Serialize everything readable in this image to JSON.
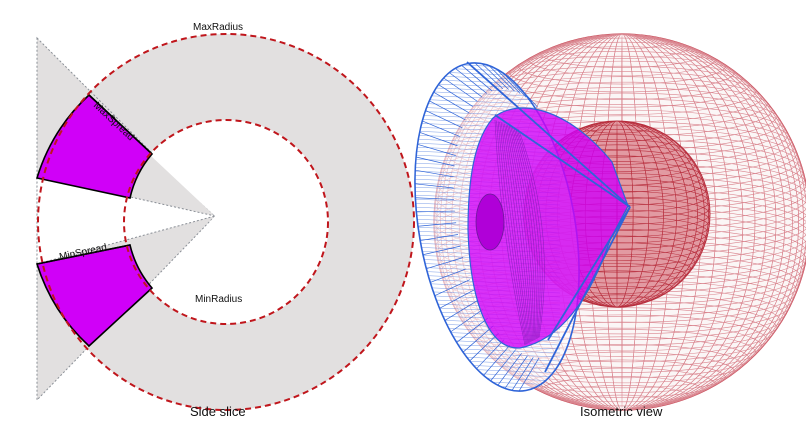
{
  "side_slice": {
    "caption": "Side slice",
    "labels": {
      "max_radius": "MaxRadius",
      "min_radius": "MinRadius",
      "max_spread": "MaxSpread",
      "min_spread": "MinSpread"
    }
  },
  "isometric": {
    "caption": "Isometric view"
  },
  "colors": {
    "region_fill": "#e2e0e0",
    "wedge_fill": "#d000f8",
    "radius_dash": "#c0161c",
    "cone_line": "#2f64d8",
    "sphere_line": "#c84b58"
  }
}
